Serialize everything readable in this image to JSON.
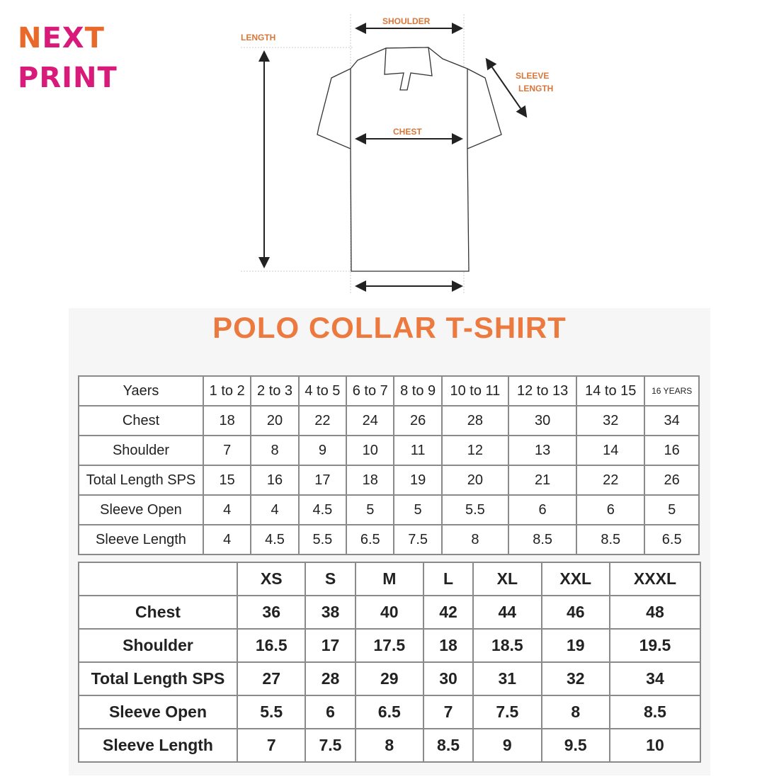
{
  "brand": {
    "line1_a": "N",
    "line1_b": "EX",
    "line1_c": "T",
    "line2": "PRINT",
    "orange": "#e8692a",
    "pink": "#d81b7a"
  },
  "diagram": {
    "shoulder": "SHOULDER",
    "length": "LENGTH",
    "sleeve_length_1": "SLEEVE",
    "sleeve_length_2": "LENGTH",
    "chest": "CHEST"
  },
  "title": "POLO COLLAR T-SHIRT",
  "kids_table": {
    "header": [
      "Yaers",
      "1 to 2",
      "2 to 3",
      "4 to 5",
      "6 to 7",
      "8 to 9",
      "10 to 11",
      "12 to 13",
      "14 to 15",
      "16 YEARS"
    ],
    "rows": [
      [
        "Chest",
        "18",
        "20",
        "22",
        "24",
        "26",
        "28",
        "30",
        "32",
        "34"
      ],
      [
        "Shoulder",
        "7",
        "8",
        "9",
        "10",
        "11",
        "12",
        "13",
        "14",
        "16"
      ],
      [
        "Total Length SPS",
        "15",
        "16",
        "17",
        "18",
        "19",
        "20",
        "21",
        "22",
        "26"
      ],
      [
        "Sleeve Open",
        "4",
        "4",
        "4.5",
        "5",
        "5",
        "5.5",
        "6",
        "6",
        "5"
      ],
      [
        "Sleeve Length",
        "4",
        "4.5",
        "5.5",
        "6.5",
        "7.5",
        "8",
        "8.5",
        "8.5",
        "6.5"
      ]
    ]
  },
  "adult_table": {
    "header": [
      "",
      "XS",
      "S",
      "M",
      "L",
      "XL",
      "XXL",
      "XXXL"
    ],
    "rows": [
      [
        "Chest",
        "36",
        "38",
        "40",
        "42",
        "44",
        "46",
        "48"
      ],
      [
        "Shoulder",
        "16.5",
        "17",
        "17.5",
        "18",
        "18.5",
        "19",
        "19.5"
      ],
      [
        "Total Length SPS",
        "27",
        "28",
        "29",
        "30",
        "31",
        "32",
        "34"
      ],
      [
        "Sleeve Open",
        "5.5",
        "6",
        "6.5",
        "7",
        "7.5",
        "8",
        "8.5"
      ],
      [
        "Sleeve Length",
        "7",
        "7.5",
        "8",
        "8.5",
        "9",
        "9.5",
        "10"
      ]
    ]
  }
}
